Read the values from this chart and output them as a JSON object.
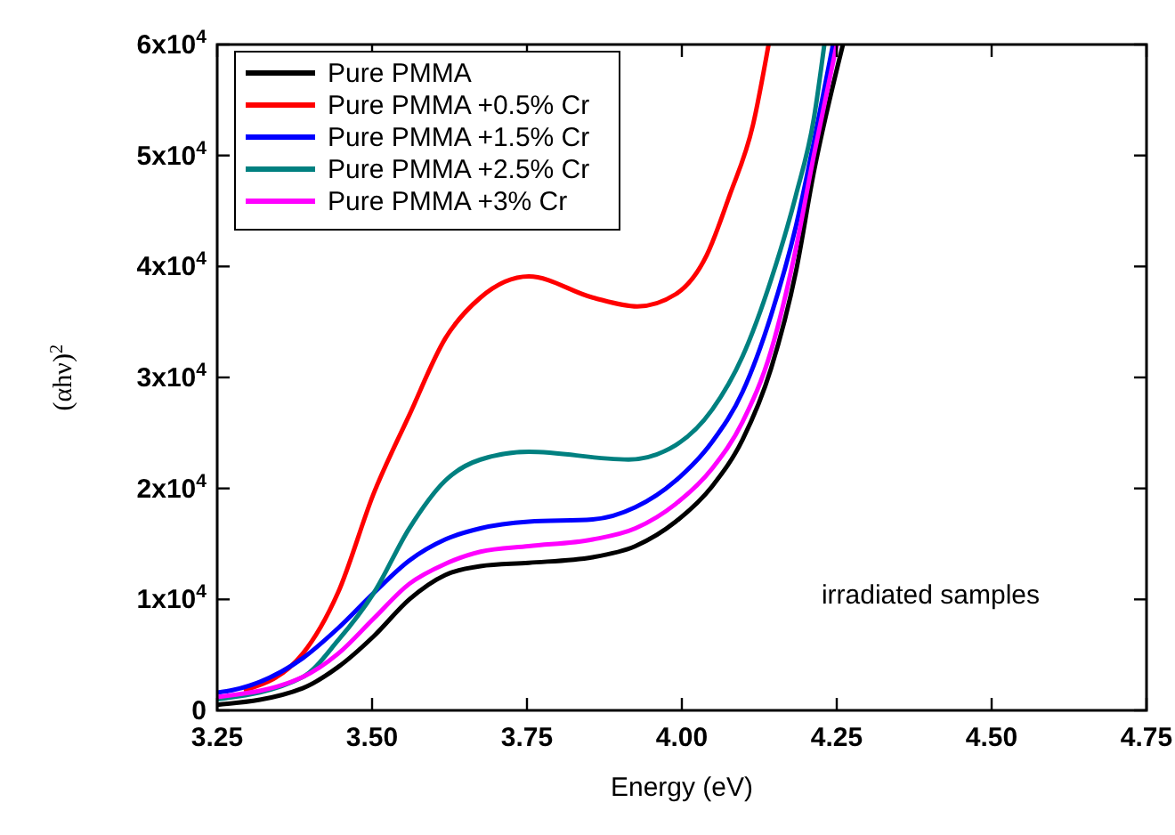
{
  "chart_data": {
    "type": "line",
    "xlabel": "Energy (eV)",
    "ylabel": "(αhν)$^{2}$",
    "xlim": [
      3.25,
      4.75
    ],
    "ylim": [
      0,
      60000
    ],
    "xticks": [
      {
        "value": 3.25,
        "label": "3.25"
      },
      {
        "value": 3.5,
        "label": "3.50"
      },
      {
        "value": 3.75,
        "label": "3.75"
      },
      {
        "value": 4,
        "label": "4.00"
      },
      {
        "value": 4.25,
        "label": "4.25"
      },
      {
        "value": 4.5,
        "label": "4.50"
      },
      {
        "value": 4.75,
        "label": "4.75"
      }
    ],
    "yticks": [
      0,
      {
        "value": 10000,
        "label": "1x10$^{4}$"
      },
      {
        "value": 20000,
        "label": "2x10$^{4}$"
      },
      {
        "value": 30000,
        "label": "3x10$^{4}$"
      },
      {
        "value": 40000,
        "label": "4x10$^{4}$"
      },
      {
        "value": 50000,
        "label": "5x10$^{4}$"
      },
      {
        "value": 60000,
        "label": "6x10$^{4}$"
      }
    ],
    "legend": "top left",
    "grid": false,
    "marker": "none",
    "line_style": "solid",
    "annotations": [
      "irradiated samples"
    ],
    "series": [
      {
        "name": "Pure PMMA",
        "color": "#000000",
        "x": [
          3.25,
          3.388,
          3.445,
          3.503,
          3.56,
          3.618,
          3.675,
          3.753,
          3.856,
          3.925,
          3.99,
          4.049,
          4.098,
          4.144,
          4.184,
          4.213,
          4.26
        ],
        "values": [
          500,
          2000,
          3900,
          6700,
          10000,
          12200,
          13000,
          13300,
          13800,
          14800,
          17000,
          20200,
          24400,
          30800,
          39500,
          48500,
          60000
        ]
      },
      {
        "name": "Pure PMMA +0.5% Cr",
        "color": "#ff0000",
        "x": [
          3.293,
          3.388,
          3.445,
          3.503,
          3.56,
          3.618,
          3.675,
          3.753,
          3.856,
          3.928,
          3.99,
          4.04,
          4.077,
          4.115,
          4.14
        ],
        "values": [
          1800,
          5100,
          10600,
          19600,
          26600,
          33500,
          37200,
          39100,
          37200,
          36400,
          37500,
          41000,
          46400,
          52800,
          60000
        ]
      },
      {
        "name": "Pure PMMA +1.5% Cr",
        "color": "#0000ff",
        "x": [
          3.25,
          3.273,
          3.388,
          3.445,
          3.503,
          3.56,
          3.618,
          3.675,
          3.753,
          3.856,
          3.925,
          3.99,
          4.049,
          4.098,
          4.144,
          4.184,
          4.213,
          4.244
        ],
        "values": [
          1600,
          1800,
          4700,
          7400,
          10600,
          13500,
          15400,
          16400,
          17000,
          17200,
          18300,
          20700,
          24200,
          28700,
          35600,
          43600,
          51200,
          60000
        ]
      },
      {
        "name": "Pure PMMA +2.5% Cr",
        "color": "#008080",
        "x": [
          3.25,
          3.388,
          3.445,
          3.503,
          3.56,
          3.618,
          3.675,
          3.753,
          3.914,
          3.99,
          4.049,
          4.098,
          4.144,
          4.184,
          4.213,
          4.23
        ],
        "values": [
          1000,
          3000,
          6300,
          10600,
          16400,
          20700,
          22600,
          23300,
          22600,
          23900,
          27100,
          31900,
          38800,
          46400,
          53300,
          60000
        ]
      },
      {
        "name": "Pure PMMA +3% Cr",
        "color": "#ff00ff",
        "x": [
          3.25,
          3.388,
          3.445,
          3.503,
          3.56,
          3.618,
          3.675,
          3.753,
          3.856,
          3.925,
          3.99,
          4.049,
          4.098,
          4.144,
          4.184,
          4.213,
          4.25
        ],
        "values": [
          1200,
          3000,
          5100,
          8300,
          11400,
          13200,
          14300,
          14800,
          15400,
          16400,
          18600,
          21800,
          26000,
          32400,
          41600,
          50000,
          60000
        ]
      }
    ]
  }
}
